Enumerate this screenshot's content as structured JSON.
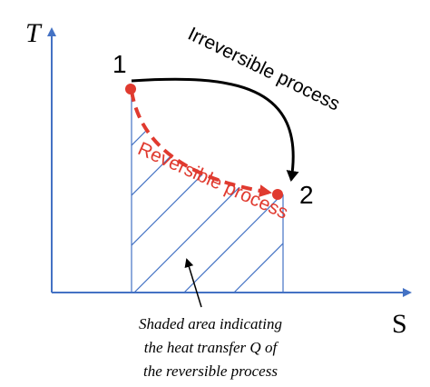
{
  "axes": {
    "y_label": "T",
    "x_label": "S"
  },
  "points": [
    {
      "label": "1"
    },
    {
      "label": "2"
    }
  ],
  "processes": {
    "irreversible": "Irreversible process",
    "reversible": "Reversible process"
  },
  "annotation": {
    "lines": [
      "Shaded area indicating",
      "the heat transfer Q of",
      "the reversible process"
    ]
  }
}
